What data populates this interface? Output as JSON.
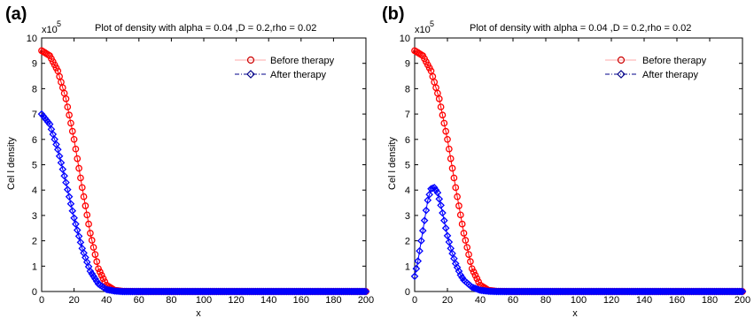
{
  "panels": [
    {
      "label": "(a)",
      "title": "Plot of density with alpha = 0.04 ,D = 0.2,rho = 0.02",
      "xlabel": "x",
      "ylabel": "Cel l density",
      "y_multiplier": "x10",
      "y_multiplier_exp": "5",
      "legend": [
        "Before therapy",
        "After therapy"
      ]
    },
    {
      "label": "(b)",
      "title": "Plot of density with alpha = 0.04 ,D = 0.2,rho = 0.02",
      "xlabel": "x",
      "ylabel": "Cel l density",
      "y_multiplier": "x10",
      "y_multiplier_exp": "5",
      "legend": [
        "Before therapy",
        "After therapy"
      ]
    }
  ],
  "chart_data": [
    {
      "type": "line",
      "title": "Plot of density with alpha = 0.04 ,D = 0.2,rho = 0.02",
      "xlabel": "x",
      "ylabel": "Cel l density",
      "xlim": [
        0,
        200
      ],
      "ylim": [
        0,
        10
      ],
      "y_scale_factor": "x10^5",
      "xticks": [
        0,
        20,
        40,
        60,
        80,
        100,
        120,
        140,
        160,
        180,
        200
      ],
      "yticks": [
        0,
        1,
        2,
        3,
        4,
        5,
        6,
        7,
        8,
        9,
        10
      ],
      "legend_position": "top-right",
      "series": [
        {
          "name": "Before therapy",
          "color": "#ff0000",
          "marker": "circle",
          "x": [
            0,
            5,
            10,
            15,
            20,
            25,
            30,
            35,
            40,
            45,
            50,
            60,
            80,
            100,
            120,
            140,
            160,
            180,
            200
          ],
          "y": [
            9.5,
            9.3,
            8.7,
            7.6,
            6.0,
            4.1,
            2.3,
            0.9,
            0.25,
            0.05,
            0.01,
            0,
            0,
            0,
            0,
            0,
            0,
            0,
            0
          ]
        },
        {
          "name": "After therapy",
          "color": "#0000ff",
          "marker": "diamond",
          "x": [
            0,
            5,
            10,
            15,
            20,
            25,
            30,
            35,
            40,
            45,
            50,
            60,
            80,
            100,
            120,
            140,
            160,
            180,
            200
          ],
          "y": [
            7.0,
            6.6,
            5.6,
            4.3,
            2.9,
            1.7,
            0.8,
            0.3,
            0.08,
            0.02,
            0,
            0,
            0,
            0,
            0,
            0,
            0,
            0,
            0
          ]
        }
      ]
    },
    {
      "type": "line",
      "title": "Plot of density with alpha = 0.04 ,D = 0.2,rho = 0.02",
      "xlabel": "x",
      "ylabel": "Cel l density",
      "xlim": [
        0,
        200
      ],
      "ylim": [
        0,
        10
      ],
      "y_scale_factor": "x10^5",
      "xticks": [
        0,
        20,
        40,
        60,
        80,
        100,
        120,
        140,
        160,
        180,
        200
      ],
      "yticks": [
        0,
        1,
        2,
        3,
        4,
        5,
        6,
        7,
        8,
        9,
        10
      ],
      "legend_position": "top-right",
      "series": [
        {
          "name": "Before therapy",
          "color": "#ff0000",
          "marker": "circle",
          "x": [
            0,
            5,
            10,
            15,
            20,
            25,
            30,
            35,
            40,
            45,
            50,
            60,
            80,
            100,
            120,
            140,
            160,
            180,
            200
          ],
          "y": [
            9.5,
            9.3,
            8.7,
            7.6,
            6.0,
            4.1,
            2.3,
            0.9,
            0.25,
            0.05,
            0.01,
            0,
            0,
            0,
            0,
            0,
            0,
            0,
            0
          ]
        },
        {
          "name": "After therapy",
          "color": "#0000ff",
          "marker": "diamond",
          "x": [
            0,
            2,
            5,
            8,
            10,
            12,
            14,
            16,
            18,
            20,
            22,
            25,
            28,
            30,
            35,
            40,
            45,
            50,
            60,
            80,
            100,
            120,
            140,
            160,
            180,
            200
          ],
          "y": [
            0.6,
            1.2,
            2.4,
            3.6,
            4.05,
            4.1,
            3.9,
            3.4,
            2.8,
            2.2,
            1.7,
            1.1,
            0.65,
            0.45,
            0.17,
            0.05,
            0.01,
            0,
            0,
            0,
            0,
            0,
            0,
            0,
            0,
            0
          ]
        }
      ]
    }
  ]
}
